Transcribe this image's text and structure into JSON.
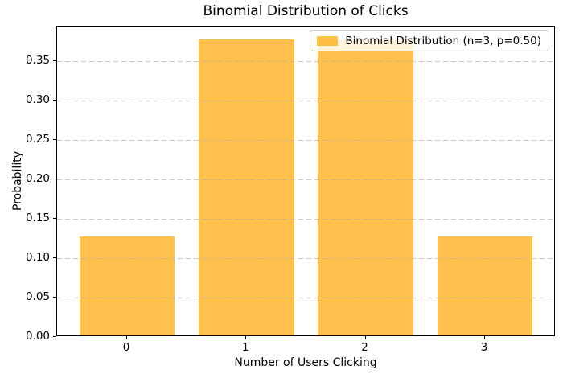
{
  "figure": {
    "kind": "matplotlib-bar-chart"
  },
  "chart_data": {
    "type": "bar",
    "title": "Binomial Distribution of Clicks",
    "xlabel": "Number of Users Clicking",
    "ylabel": "Probability",
    "categories": [
      "0",
      "1",
      "2",
      "3"
    ],
    "values": [
      0.125,
      0.375,
      0.375,
      0.125
    ],
    "ylim": [
      0,
      0.39375
    ],
    "yticks": [
      0.0,
      0.05,
      0.1,
      0.15,
      0.2,
      0.25,
      0.3,
      0.35
    ],
    "ytick_labels": [
      "0.00",
      "0.05",
      "0.10",
      "0.15",
      "0.20",
      "0.25",
      "0.30",
      "0.35"
    ],
    "grid": {
      "axis": "y",
      "linestyle": "dashed",
      "color": "#B0B0B0",
      "alpha": 0.7
    },
    "legend": {
      "label": "Binomial Distribution (n=3, p=0.50)",
      "position": "upper right"
    },
    "bar_color": "#FFA500",
    "bar_alpha": 0.7,
    "background_color": "#FFFFFF",
    "spine_color": "#000000"
  }
}
